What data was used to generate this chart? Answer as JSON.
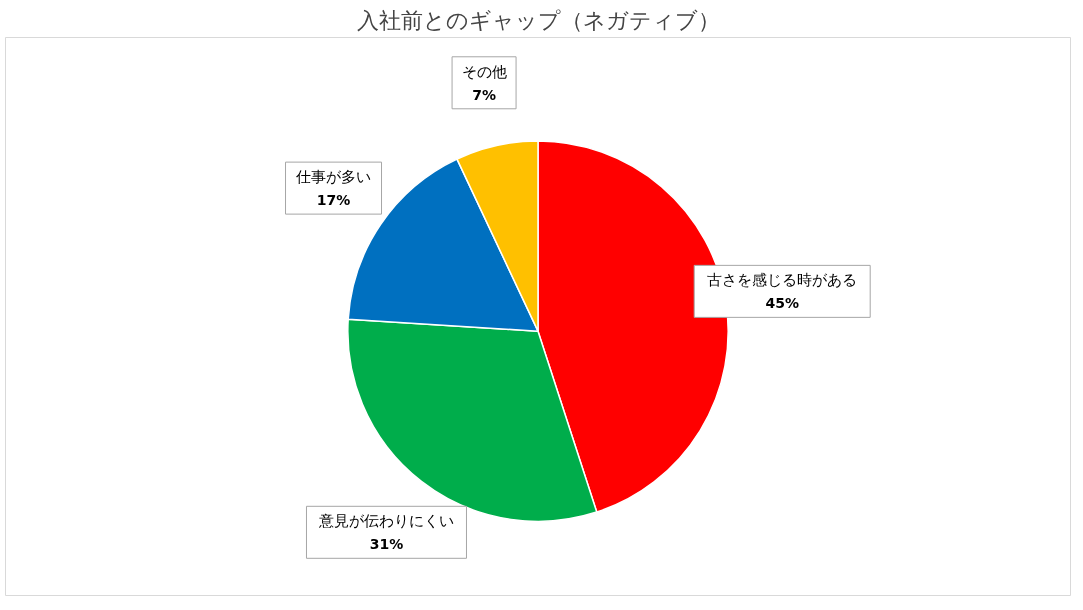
{
  "chart_data": {
    "type": "pie",
    "title": "入社前とのギャップ（ネガティブ）",
    "categories": [
      "古さを感じる時がある",
      "意見が伝わりにくい",
      "仕事が多い",
      "その他"
    ],
    "values": [
      45,
      31,
      17,
      7
    ],
    "colors": [
      "#ff0000",
      "#00ad4b",
      "#0070c0",
      "#ffc000"
    ],
    "value_labels": [
      "45%",
      "31%",
      "17%",
      "7%"
    ],
    "legend": false
  }
}
